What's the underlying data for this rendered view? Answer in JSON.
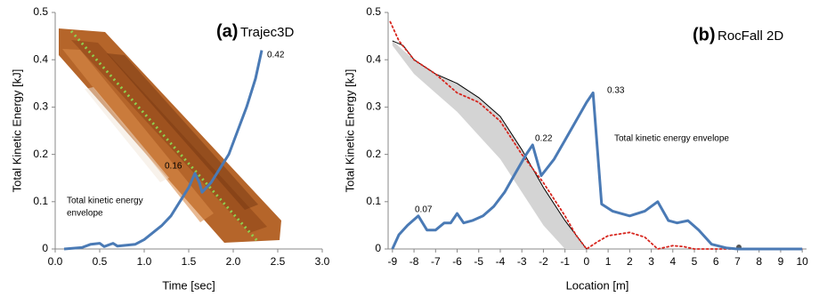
{
  "chart_data": [
    {
      "type": "line",
      "title": "(a)",
      "subtitle": "Trajec3D",
      "x_label": "Time [sec]",
      "y_label": "Total Kinetic Energy [kJ]",
      "xlim": [
        0,
        3
      ],
      "ylim": [
        0,
        0.5
      ],
      "xticks": [
        {
          "value": 0,
          "label": "0.0"
        },
        {
          "value": 0.5,
          "label": "0.5"
        },
        {
          "value": 1,
          "label": "1.0"
        },
        {
          "value": 1.5,
          "label": "1.5"
        },
        {
          "value": 2,
          "label": "2.0"
        },
        {
          "value": 2.5,
          "label": "2.5"
        },
        {
          "value": 3,
          "label": "3.0"
        }
      ],
      "yticks": [
        0,
        0.1,
        0.2,
        0.3,
        0.4,
        0.5
      ],
      "series": [
        {
          "color": "#4a7ab5",
          "linewidth": 3,
          "linestyle": "solid",
          "x": [
            0.1,
            0.3,
            0.4,
            0.5,
            0.55,
            0.65,
            0.7,
            0.8,
            0.9,
            1.0,
            1.1,
            1.2,
            1.3,
            1.4,
            1.5,
            1.57,
            1.62,
            1.65,
            1.75,
            1.85,
            1.95,
            2.05,
            2.15,
            2.25,
            2.32
          ],
          "values": [
            0,
            0.003,
            0.01,
            0.012,
            0.005,
            0.012,
            0.006,
            0.008,
            0.01,
            0.02,
            0.035,
            0.05,
            0.07,
            0.1,
            0.13,
            0.16,
            0.14,
            0.12,
            0.14,
            0.17,
            0.2,
            0.25,
            0.3,
            0.36,
            0.42
          ]
        }
      ],
      "annotations": [
        "0.16",
        "0.42",
        "Total kinetic energy",
        "envelope"
      ]
    },
    {
      "type": "line",
      "title": "(b)",
      "subtitle": "RocFall 2D",
      "x_label": "Location [m]",
      "y_label": "Total Kinetic Energy [kJ]",
      "xlim": [
        -9.2,
        10.2
      ],
      "ylim": [
        0,
        0.5
      ],
      "xticks": [
        -9,
        -8,
        -7,
        -6,
        -5,
        -4,
        -3,
        -2,
        -1,
        0,
        1,
        2,
        3,
        4,
        5,
        6,
        7,
        8,
        9,
        10
      ],
      "yticks": [
        0,
        0.1,
        0.2,
        0.3,
        0.4,
        0.5
      ],
      "series": [
        {
          "kind": "band",
          "color": "#d4d4d4",
          "x": [
            -9,
            -8,
            -7,
            -6,
            -5,
            -4,
            -3,
            -2,
            -1,
            0
          ],
          "values": [
            0.44,
            0.4,
            0.37,
            0.35,
            0.32,
            0.28,
            0.21,
            0.13,
            0.06,
            0
          ],
          "lower": [
            0.43,
            0.37,
            0.33,
            0.29,
            0.24,
            0.19,
            0.12,
            0.05,
            0,
            0
          ]
        },
        {
          "color": "#000000",
          "linewidth": 1,
          "linestyle": "solid",
          "x": [
            -9,
            -8.5,
            -8,
            -7,
            -6,
            -5,
            -4,
            -3,
            -2,
            -1,
            -0.5,
            0
          ],
          "values": [
            0.44,
            0.43,
            0.4,
            0.37,
            0.35,
            0.32,
            0.28,
            0.21,
            0.13,
            0.06,
            0.03,
            0
          ]
        },
        {
          "color": "#d7261e",
          "linewidth": 1.8,
          "linestyle": "dotted",
          "x": [
            -9.1,
            -8.7,
            -8,
            -7,
            -6,
            -5,
            -4,
            -3,
            -2,
            -1,
            -0.5,
            0,
            0.5,
            1,
            2,
            2.7,
            3.3,
            4,
            4.5,
            5,
            10
          ],
          "values": [
            0.48,
            0.44,
            0.4,
            0.37,
            0.33,
            0.31,
            0.27,
            0.2,
            0.14,
            0.07,
            0.03,
            0,
            0.015,
            0.028,
            0.035,
            0.025,
            0,
            0.007,
            0.005,
            0,
            0
          ]
        },
        {
          "color": "#4a7ab5",
          "linewidth": 3,
          "linestyle": "solid",
          "x": [
            -9,
            -8.7,
            -8.3,
            -7.8,
            -7.4,
            -7,
            -6.6,
            -6.3,
            -6,
            -5.7,
            -5.3,
            -4.8,
            -4.3,
            -3.8,
            -3.3,
            -2.8,
            -2.5,
            -2.1,
            -1.5,
            -1,
            -0.5,
            0,
            0.3,
            0.7,
            1.2,
            2,
            2.7,
            3.3,
            3.8,
            4.2,
            4.7,
            5.2,
            5.8,
            6.5,
            7,
            10
          ],
          "values": [
            0,
            0.03,
            0.05,
            0.07,
            0.04,
            0.04,
            0.055,
            0.055,
            0.075,
            0.055,
            0.06,
            0.07,
            0.09,
            0.12,
            0.16,
            0.2,
            0.22,
            0.155,
            0.19,
            0.23,
            0.27,
            0.31,
            0.33,
            0.095,
            0.08,
            0.07,
            0.08,
            0.1,
            0.06,
            0.055,
            0.06,
            0.04,
            0.01,
            0.002,
            0,
            0
          ]
        }
      ],
      "annotations": [
        "0.07",
        "0.22",
        "0.33",
        "Total kinetic energy envelope"
      ]
    }
  ]
}
